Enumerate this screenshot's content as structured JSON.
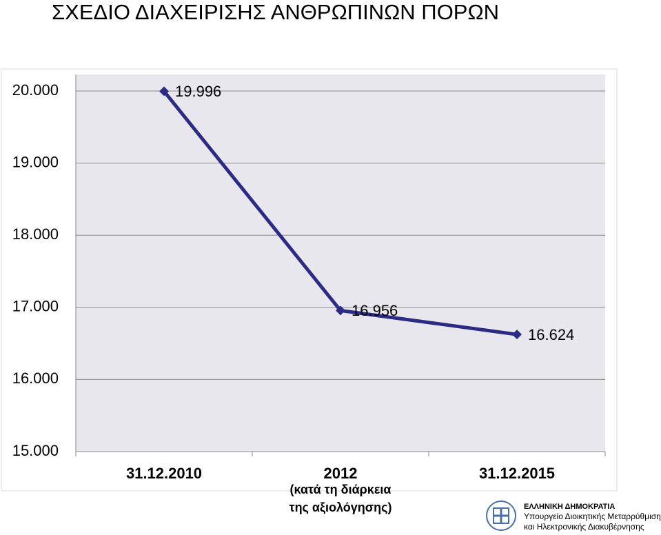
{
  "chart_data": {
    "type": "line",
    "title": "ΣΧΕΔΙΟ ΔΙΑΧΕΙΡΙΣΗΣ ΑΝΘΡΩΠΙΝΩΝ ΠΟΡΩΝ",
    "categories": [
      "31.12.2010",
      "2012",
      "31.12.2015"
    ],
    "x_annotation": [
      "(κατά τη διάρκεια",
      "της αξιολόγησης)"
    ],
    "values": [
      19996,
      16956,
      16624
    ],
    "value_labels": [
      "19.996",
      "16.956",
      "16.624"
    ],
    "color": "#2b2b86",
    "ylim": [
      15000,
      20000
    ],
    "yticks": [
      {
        "value": 15000,
        "label": "15.000"
      },
      {
        "value": 16000,
        "label": "16.000"
      },
      {
        "value": 17000,
        "label": "17.000"
      },
      {
        "value": 18000,
        "label": "18.000"
      },
      {
        "value": 19000,
        "label": "19.000"
      },
      {
        "value": 20000,
        "label": "20.000"
      }
    ],
    "grid": true
  },
  "footer": {
    "country": "ΕΛΛΗΝΙΚΗ ΔΗΜΟΚΡΑΤΙΑ",
    "ministry": [
      "Υπουργείο Διοικητικής Μεταρρύθμισης",
      "και Ηλεκτρονικής Διακυβέρνησης"
    ]
  }
}
